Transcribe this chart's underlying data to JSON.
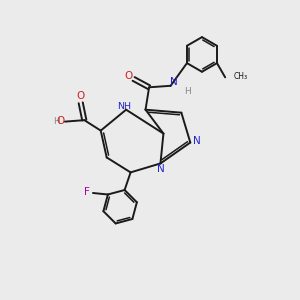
{
  "background_color": "#ebebeb",
  "bond_color": "#1a1a1a",
  "n_color": "#2222cc",
  "o_color": "#cc2222",
  "f_color": "#aa00aa",
  "h_color": "#888888",
  "figsize": [
    3.0,
    3.0
  ],
  "dpi": 100,
  "xlim": [
    0,
    10
  ],
  "ylim": [
    0,
    10
  ]
}
